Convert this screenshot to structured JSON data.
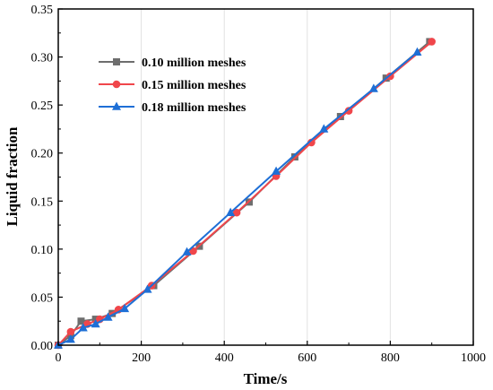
{
  "chart_data": {
    "type": "line",
    "xlabel": "Time/s",
    "ylabel": "Liquid fraction",
    "xlim": [
      0,
      1000
    ],
    "ylim": [
      0,
      0.35
    ],
    "x_ticks": [
      "0",
      "200",
      "400",
      "600",
      "800",
      "1000"
    ],
    "y_ticks": [
      "0.00",
      "0.05",
      "0.10",
      "0.15",
      "0.20",
      "0.25",
      "0.30",
      "0.35"
    ],
    "x_tick_values": [
      0,
      200,
      400,
      600,
      800,
      1000
    ],
    "y_tick_values": [
      0,
      0.05,
      0.1,
      0.15,
      0.2,
      0.25,
      0.3,
      0.35
    ],
    "grid": "vertical-only",
    "legend_position": "top-left",
    "series": [
      {
        "name": "0.10 million meshes",
        "color": "#6e6e6e",
        "marker": "square",
        "x": [
          0,
          30,
          55,
          90,
          130,
          230,
          340,
          460,
          570,
          680,
          790,
          895
        ],
        "y": [
          0,
          0.01,
          0.025,
          0.027,
          0.033,
          0.062,
          0.103,
          0.149,
          0.196,
          0.238,
          0.278,
          0.316
        ]
      },
      {
        "name": "0.15 million meshes",
        "color": "#f0464b",
        "marker": "circle",
        "x": [
          0,
          30,
          70,
          100,
          145,
          225,
          325,
          430,
          525,
          610,
          700,
          800,
          900
        ],
        "y": [
          0,
          0.014,
          0.022,
          0.027,
          0.037,
          0.062,
          0.098,
          0.138,
          0.176,
          0.211,
          0.244,
          0.28,
          0.316
        ]
      },
      {
        "name": "0.18 million meshes",
        "color": "#1e6fd6",
        "marker": "triangle",
        "x": [
          0,
          30,
          60,
          90,
          120,
          160,
          215,
          310,
          415,
          525,
          640,
          760,
          865
        ],
        "y": [
          0,
          0.006,
          0.018,
          0.022,
          0.029,
          0.038,
          0.058,
          0.097,
          0.138,
          0.181,
          0.225,
          0.267,
          0.305
        ]
      }
    ]
  }
}
